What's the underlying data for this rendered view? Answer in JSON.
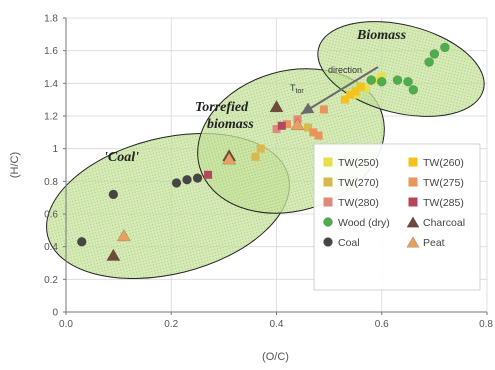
{
  "chart_data": {
    "type": "scatter",
    "xlabel": "(O/C)",
    "ylabel": "(H/C)",
    "xlim": [
      0.0,
      0.8
    ],
    "ylim": [
      0,
      1.8
    ],
    "x_ticks": [
      "0.0",
      "0.2",
      "0.4",
      "0.6",
      "0.8"
    ],
    "y_ticks": [
      "0",
      "0.2",
      "0.4",
      "0.6",
      "0.8",
      "1",
      "1.2",
      "1.4",
      "1.6",
      "1.8"
    ],
    "grid": true,
    "legend_position": "bottom-right",
    "regions": [
      {
        "label": "'Coal'",
        "color": "#c9e2a0"
      },
      {
        "label": "Torrefied biomass",
        "color": "#c9e2a0"
      },
      {
        "label": "Biomass",
        "color": "#c9e2a0"
      }
    ],
    "annotation": {
      "text_main": "T",
      "text_sub": "tor",
      "text_small": "direction"
    },
    "series": [
      {
        "name": "TW(250)",
        "marker": "square",
        "color": "#e8e04a",
        "points": [
          [
            0.55,
            1.33
          ],
          [
            0.57,
            1.37
          ],
          [
            0.59,
            1.42
          ],
          [
            0.6,
            1.44
          ]
        ]
      },
      {
        "name": "TW(260)",
        "marker": "square",
        "color": "#f3c21f",
        "points": [
          [
            0.53,
            1.3
          ],
          [
            0.54,
            1.33
          ],
          [
            0.55,
            1.35
          ],
          [
            0.56,
            1.38
          ]
        ]
      },
      {
        "name": "TW(270)",
        "marker": "square",
        "color": "#d9b84e",
        "points": [
          [
            0.36,
            0.95
          ],
          [
            0.37,
            1.0
          ],
          [
            0.46,
            1.13
          ]
        ]
      },
      {
        "name": "TW(275)",
        "marker": "square",
        "color": "#e8955c",
        "points": [
          [
            0.42,
            1.15
          ],
          [
            0.47,
            1.1
          ],
          [
            0.48,
            1.08
          ],
          [
            0.49,
            1.24
          ]
        ]
      },
      {
        "name": "TW(280)",
        "marker": "square",
        "color": "#e08a7c",
        "points": [
          [
            0.4,
            1.12
          ],
          [
            0.44,
            1.18
          ]
        ]
      },
      {
        "name": "TW(285)",
        "marker": "square",
        "color": "#b5475c",
        "points": [
          [
            0.27,
            0.84
          ],
          [
            0.41,
            1.14
          ]
        ]
      },
      {
        "name": "Wood (dry)",
        "marker": "circle",
        "color": "#4cae4c",
        "points": [
          [
            0.58,
            1.42
          ],
          [
            0.6,
            1.41
          ],
          [
            0.63,
            1.42
          ],
          [
            0.65,
            1.41
          ],
          [
            0.66,
            1.36
          ],
          [
            0.69,
            1.53
          ],
          [
            0.7,
            1.58
          ],
          [
            0.72,
            1.62
          ]
        ]
      },
      {
        "name": "Charcoal",
        "marker": "triangle",
        "color": "#6e4a3c",
        "points": [
          [
            0.09,
            0.35
          ],
          [
            0.31,
            0.96
          ],
          [
            0.4,
            1.26
          ]
        ]
      },
      {
        "name": "Coal",
        "marker": "circle",
        "color": "#454545",
        "points": [
          [
            0.03,
            0.43
          ],
          [
            0.09,
            0.72
          ],
          [
            0.21,
            0.79
          ],
          [
            0.23,
            0.81
          ],
          [
            0.25,
            0.82
          ]
        ]
      },
      {
        "name": "Peat",
        "marker": "triangle",
        "color": "#e8a060",
        "points": [
          [
            0.11,
            0.47
          ],
          [
            0.31,
            0.94
          ],
          [
            0.44,
            1.15
          ]
        ]
      }
    ]
  }
}
